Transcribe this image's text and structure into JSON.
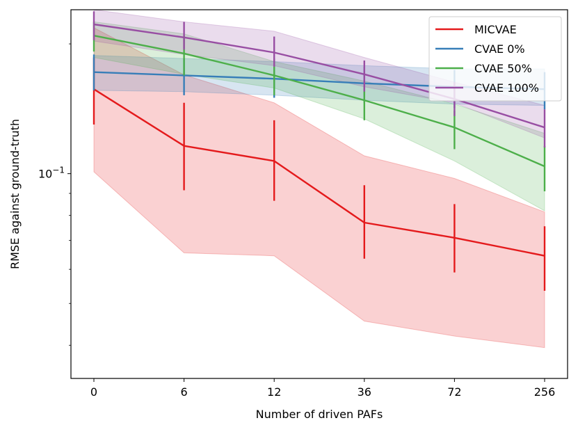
{
  "chart_data": {
    "type": "line",
    "title": "",
    "xlabel": "Number of driven PAFs",
    "ylabel": "RMSE against ground-truth",
    "categories": [
      "0",
      "6",
      "12",
      "36",
      "72",
      "256"
    ],
    "yscale": "log",
    "ylim": [
      0.0335,
      0.24
    ],
    "y_major_tick_labels": [
      {
        "value": 0.1,
        "base": "10",
        "exponent": "−1"
      }
    ],
    "y_minor_ticks": [
      0.04,
      0.05,
      0.06,
      0.07,
      0.08,
      0.09,
      0.2
    ],
    "legend_position": "top-right",
    "series": [
      {
        "name": "MICVAE",
        "color": "#e41a1c",
        "values": [
          0.157,
          0.116,
          0.107,
          0.077,
          0.071,
          0.0645
        ],
        "err_low": [
          0.13,
          0.0915,
          0.0865,
          0.0635,
          0.059,
          0.0535
        ],
        "err_high": [
          0.186,
          0.146,
          0.133,
          0.094,
          0.085,
          0.0755
        ],
        "band_low": [
          0.101,
          0.0655,
          0.0645,
          0.0455,
          0.042,
          0.0395
        ],
        "band_high": [
          0.218,
          0.1695,
          0.146,
          0.11,
          0.0975,
          0.0815
        ]
      },
      {
        "name": "CVAE 0%",
        "color": "#377eb8",
        "values": [
          0.172,
          0.169,
          0.166,
          0.162,
          0.159,
          0.157
        ],
        "err_low": [
          0.156,
          0.152,
          0.15,
          0.146,
          0.142,
          0.141
        ],
        "err_high": [
          0.189,
          0.185,
          0.182,
          0.177,
          0.174,
          0.172
        ],
        "band_low": [
          0.156,
          0.155,
          0.152,
          0.148,
          0.145,
          0.144
        ],
        "band_high": [
          0.188,
          0.185,
          0.182,
          0.178,
          0.175,
          0.175
        ]
      },
      {
        "name": "CVAE 50%",
        "color": "#4daf4a",
        "values": [
          0.209,
          0.19,
          0.169,
          0.148,
          0.128,
          0.104
        ],
        "err_low": [
          0.192,
          0.169,
          0.152,
          0.133,
          0.114,
          0.091
        ],
        "err_high": [
          0.225,
          0.209,
          0.185,
          0.161,
          0.14,
          0.116
        ],
        "band_low": [
          0.186,
          0.17,
          0.158,
          0.134,
          0.107,
          0.082
        ],
        "band_high": [
          0.225,
          0.211,
          0.182,
          0.164,
          0.145,
          0.124
        ]
      },
      {
        "name": "CVAE 100%",
        "color": "#984ea3",
        "values": [
          0.222,
          0.207,
          0.191,
          0.17,
          0.149,
          0.128
        ],
        "err_low": [
          0.204,
          0.194,
          0.177,
          0.155,
          0.136,
          0.115
        ],
        "err_high": [
          0.238,
          0.225,
          0.208,
          0.183,
          0.163,
          0.141
        ],
        "band_low": [
          0.203,
          0.189,
          0.178,
          0.159,
          0.146,
          0.121
        ],
        "band_high": [
          0.24,
          0.225,
          0.214,
          0.186,
          0.163,
          0.144
        ]
      }
    ]
  }
}
